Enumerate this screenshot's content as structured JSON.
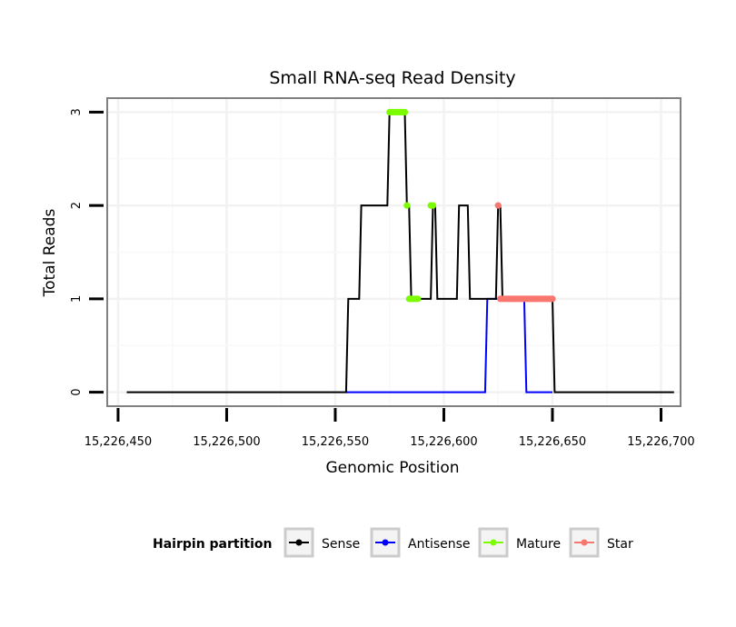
{
  "chart_data": {
    "type": "line",
    "title": "Small RNA-seq Read Density",
    "xlabel": "Genomic Position",
    "ylabel": "Total Reads",
    "xlim": [
      15226445,
      15226709
    ],
    "ylim": [
      -0.15,
      3.15
    ],
    "x_ticks": [
      15226450,
      15226500,
      15226550,
      15226600,
      15226650,
      15226700
    ],
    "x_tick_labels": [
      "15,226,450",
      "15,226,500",
      "15,226,550",
      "15,226,600",
      "15,226,650",
      "15,226,700"
    ],
    "y_ticks": [
      0,
      1,
      2,
      3
    ],
    "y_tick_labels": [
      "0",
      "1",
      "2",
      "3"
    ],
    "grid": true,
    "legend": {
      "title": "Hairpin partition",
      "position": "bottom",
      "entries": [
        {
          "name": "Sense",
          "color": "#000000"
        },
        {
          "name": "Antisense",
          "color": "#0000ff"
        },
        {
          "name": "Mature",
          "color": "#7cfc00"
        },
        {
          "name": "Star",
          "color": "#f8766d"
        }
      ]
    },
    "series": [
      {
        "name": "Sense",
        "color": "#000000",
        "markers": false,
        "x": [
          15226454,
          15226555,
          15226556,
          15226561,
          15226562,
          15226574,
          15226575,
          15226582,
          15226583,
          15226584,
          15226585,
          15226594,
          15226595,
          15226596,
          15226597,
          15226606,
          15226607,
          15226611,
          15226612,
          15226624,
          15226625,
          15226626,
          15226627,
          15226650,
          15226651,
          15226706
        ],
        "y": [
          0,
          0,
          1,
          1,
          2,
          2,
          3,
          3,
          2,
          2,
          1,
          1,
          2,
          2,
          1,
          1,
          2,
          2,
          1,
          1,
          2,
          2,
          1,
          1,
          0,
          0
        ]
      },
      {
        "name": "Antisense",
        "color": "#0000ff",
        "markers": false,
        "x": [
          15226555,
          15226619,
          15226620,
          15226637,
          15226638,
          15226650
        ],
        "y": [
          0,
          0,
          1,
          1,
          0,
          0
        ]
      },
      {
        "name": "Mature",
        "color": "#7cfc00",
        "markers": true,
        "x": [
          15226575,
          15226576,
          15226577,
          15226578,
          15226579,
          15226580,
          15226581,
          15226582,
          15226583,
          15226584,
          15226585,
          15226586,
          15226587,
          15226588,
          15226594,
          15226595
        ],
        "y": [
          3,
          3,
          3,
          3,
          3,
          3,
          3,
          3,
          2,
          1,
          1,
          1,
          1,
          1,
          2,
          2
        ]
      },
      {
        "name": "Star",
        "color": "#f8766d",
        "markers": true,
        "x": [
          15226625,
          15226626,
          15226627,
          15226628,
          15226629,
          15226630,
          15226631,
          15226632,
          15226633,
          15226634,
          15226635,
          15226636,
          15226637,
          15226638,
          15226639,
          15226640,
          15226641,
          15226642,
          15226643,
          15226644,
          15226645,
          15226646,
          15226647,
          15226648,
          15226649,
          15226650
        ],
        "y": [
          2,
          1,
          1,
          1,
          1,
          1,
          1,
          1,
          1,
          1,
          1,
          1,
          1,
          1,
          1,
          1,
          1,
          1,
          1,
          1,
          1,
          1,
          1,
          1,
          1,
          1
        ]
      }
    ]
  }
}
